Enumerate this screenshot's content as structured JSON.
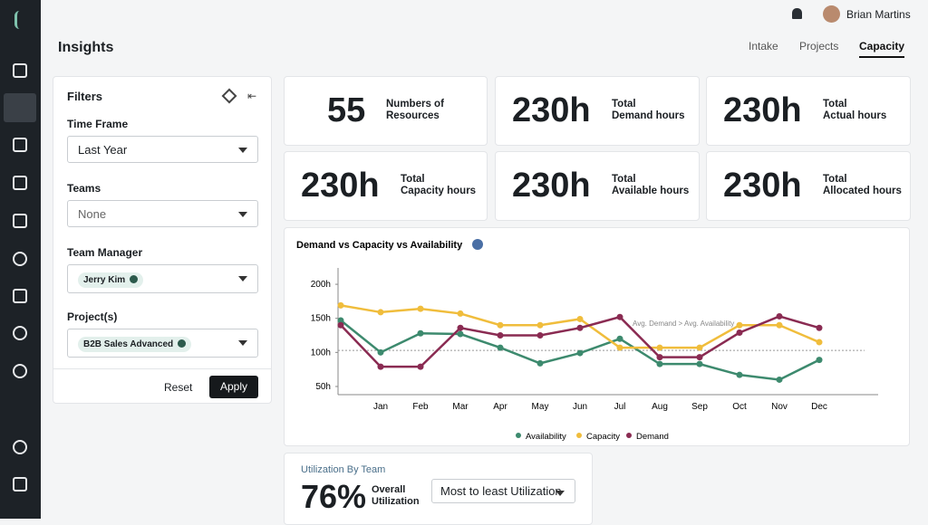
{
  "header": {
    "title": "Insights",
    "user": "Brian Martins",
    "tabs": [
      "Intake",
      "Projects",
      "Capacity"
    ],
    "active_tab": 2
  },
  "filters": {
    "title": "Filters",
    "fields": [
      {
        "label": "Time Frame",
        "value": "Last Year"
      },
      {
        "label": "Teams",
        "value": "None"
      },
      {
        "label": "Team Manager",
        "chip": "Jerry Kim"
      },
      {
        "label": "Project(s)",
        "chip": "B2B Sales Advanced"
      }
    ],
    "reset": "Reset",
    "apply": "Apply"
  },
  "stats": [
    {
      "value": "55",
      "label": [
        "Numbers of",
        "Resources"
      ]
    },
    {
      "value": "230h",
      "label": [
        "Total",
        "Demand hours"
      ]
    },
    {
      "value": "230h",
      "label": [
        "Total",
        "Actual hours"
      ]
    },
    {
      "value": "230h",
      "label": [
        "Total",
        "Capacity hours"
      ]
    },
    {
      "value": "230h",
      "label": [
        "Total",
        "Available hours"
      ]
    },
    {
      "value": "230h",
      "label": [
        "Total",
        "Allocated hours"
      ]
    }
  ],
  "chart": {
    "type": "line",
    "title": "Demand vs Capacity vs Availability",
    "categories": [
      null,
      "Jan",
      "Feb",
      "Mar",
      "Apr",
      "May",
      "Jun",
      "Jul",
      "Aug",
      "Sep",
      "Oct",
      "Nov",
      "Dec"
    ],
    "series": [
      {
        "name": "Availability",
        "color": "#3d8a6e",
        "values": [
          147,
          100,
          128,
          127,
          107,
          84,
          99,
          120,
          83,
          83,
          67,
          60,
          89
        ]
      },
      {
        "name": "Capacity",
        "color": "#f0bd3c",
        "values": [
          169,
          159,
          164,
          157,
          140,
          140,
          149,
          107,
          107,
          107,
          140,
          140,
          115
        ]
      },
      {
        "name": "Demand",
        "color": "#8a2b52",
        "values": [
          140,
          79,
          79,
          136,
          125,
          125,
          136,
          152,
          93,
          93,
          129,
          153,
          136
        ]
      }
    ],
    "ylim": [
      38,
      224
    ],
    "yticks": [
      {
        "value": 50,
        "label": "50h"
      },
      {
        "value": 100,
        "label": "100h"
      },
      {
        "value": 150,
        "label": "150h"
      },
      {
        "value": 200,
        "label": "200h"
      }
    ],
    "reference_line": {
      "value": 103,
      "label": "Avg. Demand > Avg. Availability"
    }
  },
  "utilization": {
    "title": "Utilization By Team",
    "value": "76%",
    "label": [
      "Overall",
      "Utilization"
    ],
    "sort": "Most to least Utilization"
  }
}
